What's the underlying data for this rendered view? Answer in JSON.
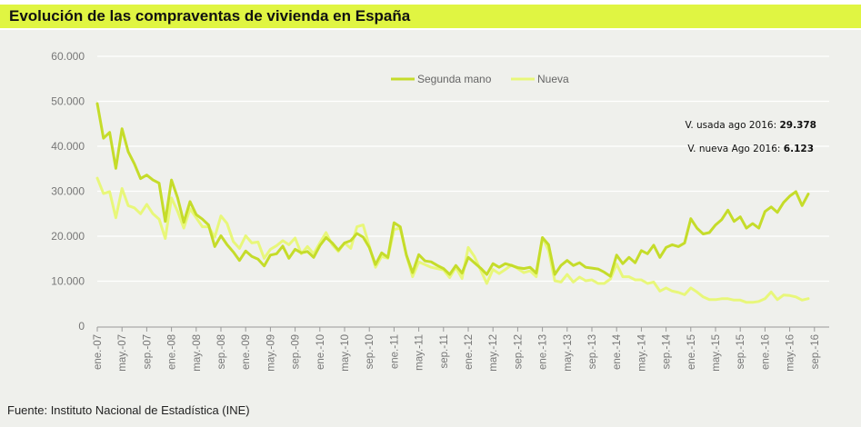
{
  "title": "Evolución de las compraventas de vivienda en España",
  "footer": "Fuente: Instituto Nacional de Estadística (INE)",
  "annotations": {
    "usada_label": "V. usada ago 2016: ",
    "usada_value": "29.378",
    "nueva_label": "V. nueva Ago 2016: ",
    "nueva_value": "6.123"
  },
  "colors": {
    "segunda_mano": "#c5dc2a",
    "nueva": "#e8f77a",
    "title_band": "#e0f542",
    "background": "#eff0ec"
  },
  "chart_data": {
    "type": "line",
    "title": "Evolución de las compraventas de vivienda en España",
    "xlabel": "",
    "ylabel": "",
    "ylim": [
      0,
      60000
    ],
    "y_ticks": [
      "0",
      "10.000",
      "20.000",
      "30.000",
      "40.000",
      "50.000",
      "60.000"
    ],
    "x_ticks": [
      "ene.-07",
      "may.-07",
      "sep.-07",
      "ene.-08",
      "may.-08",
      "sep.-08",
      "ene.-09",
      "may.-09",
      "sep.-09",
      "ene.-10",
      "may.-10",
      "sep.-10",
      "ene.-11",
      "may.-11",
      "sep.-11",
      "ene.-12",
      "may.-12",
      "sep.-12",
      "ene.-13",
      "may.-13",
      "sep.-13",
      "ene.-14",
      "may.-14",
      "sep.-14",
      "ene.-15",
      "may.-15",
      "sep.-15",
      "ene.-16",
      "may.-16",
      "sep.-16"
    ],
    "x_start": "2007-01",
    "x_end": "2016-08",
    "frequency": "monthly",
    "grid": true,
    "legend": "top-center",
    "series": [
      {
        "name": "Segunda mano",
        "values": [
          49500,
          41800,
          43100,
          35100,
          43900,
          38800,
          36100,
          32800,
          33600,
          32500,
          31800,
          23300,
          32500,
          28500,
          23100,
          27700,
          24800,
          23800,
          22500,
          17700,
          20100,
          18100,
          16500,
          14600,
          16700,
          15500,
          14900,
          13400,
          15800,
          16100,
          17800,
          15100,
          17100,
          16300,
          16600,
          15300,
          17900,
          19700,
          18500,
          16900,
          18500,
          19000,
          20600,
          19800,
          17500,
          13700,
          16300,
          15300,
          23000,
          22100,
          15800,
          11900,
          15900,
          14500,
          14300,
          13500,
          12800,
          11500,
          13500,
          11800,
          15300,
          14100,
          12900,
          11500,
          13900,
          13100,
          13900,
          13500,
          13000,
          12800,
          13100,
          11800,
          19700,
          18100,
          11500,
          13500,
          14600,
          13500,
          14100,
          13100,
          12900,
          12700,
          12000,
          11100,
          15800,
          13900,
          15300,
          14100,
          16800,
          16100,
          18000,
          15300,
          17500,
          18100,
          17700,
          18500,
          23900,
          21800,
          20500,
          20800,
          22500,
          23700,
          25800,
          23300,
          24300,
          21800,
          22800,
          21800,
          25500,
          26500,
          25300,
          27500,
          28900,
          29900,
          26800,
          29378
        ]
      },
      {
        "name": "Nueva",
        "values": [
          32900,
          29500,
          29900,
          24100,
          30600,
          26800,
          26300,
          25000,
          27100,
          25000,
          23800,
          19500,
          28500,
          25500,
          21800,
          26100,
          24100,
          22100,
          22100,
          19800,
          24500,
          22800,
          18800,
          17300,
          20100,
          18500,
          18700,
          15100,
          17100,
          17900,
          19000,
          18100,
          19600,
          16100,
          17700,
          16100,
          18500,
          20800,
          18100,
          16600,
          18500,
          17300,
          22100,
          22500,
          17800,
          13100,
          15500,
          15100,
          21500,
          21800,
          15800,
          11000,
          14300,
          13700,
          13100,
          12800,
          12500,
          10800,
          13100,
          10600,
          17500,
          15500,
          12500,
          9500,
          12600,
          11700,
          12600,
          13600,
          12800,
          11900,
          12300,
          11000,
          19700,
          16800,
          10100,
          9800,
          11500,
          9800,
          10900,
          10100,
          10300,
          9500,
          9500,
          10500,
          13800,
          11000,
          11000,
          10300,
          10300,
          9500,
          9800,
          7800,
          8500,
          7800,
          7500,
          7000,
          8500,
          7600,
          6500,
          5900,
          5900,
          6100,
          6100,
          5800,
          5800,
          5300,
          5300,
          5500,
          6100,
          7600,
          5900,
          6900,
          6800,
          6500,
          5800,
          6123
        ]
      }
    ]
  }
}
